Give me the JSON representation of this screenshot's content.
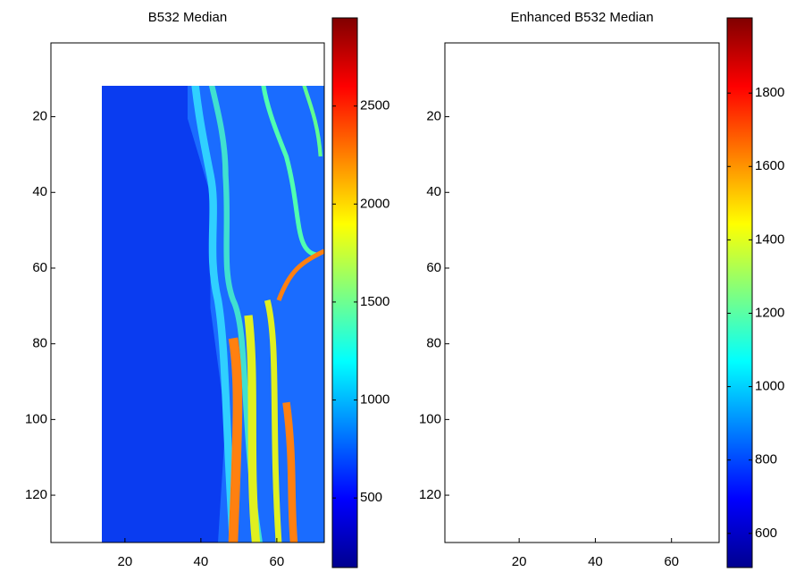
{
  "chart_data": [
    {
      "type": "heatmap",
      "title": "B532 Median",
      "colormap": "jet",
      "xlim": [
        0.5,
        72.5
      ],
      "ylim": [
        0.5,
        132.5
      ],
      "xticks": [
        20,
        40,
        60
      ],
      "yticks": [
        20,
        40,
        60,
        80,
        100,
        120
      ],
      "colorbar": {
        "lim": [
          145,
          2950
        ],
        "ticks": [
          500,
          1000,
          1500,
          2000,
          2500
        ]
      }
    },
    {
      "type": "heatmap",
      "title": "Enhanced B532 Median",
      "colormap": "jet",
      "xlim": [
        0.5,
        72.5
      ],
      "ylim": [
        0.5,
        132.5
      ],
      "xticks": [
        20,
        40,
        60
      ],
      "yticks": [
        20,
        40,
        60,
        80,
        100,
        120
      ],
      "colorbar": {
        "lim": [
          507,
          2005
        ],
        "ticks": [
          600,
          800,
          1000,
          1200,
          1400,
          1600,
          1800
        ]
      }
    }
  ]
}
